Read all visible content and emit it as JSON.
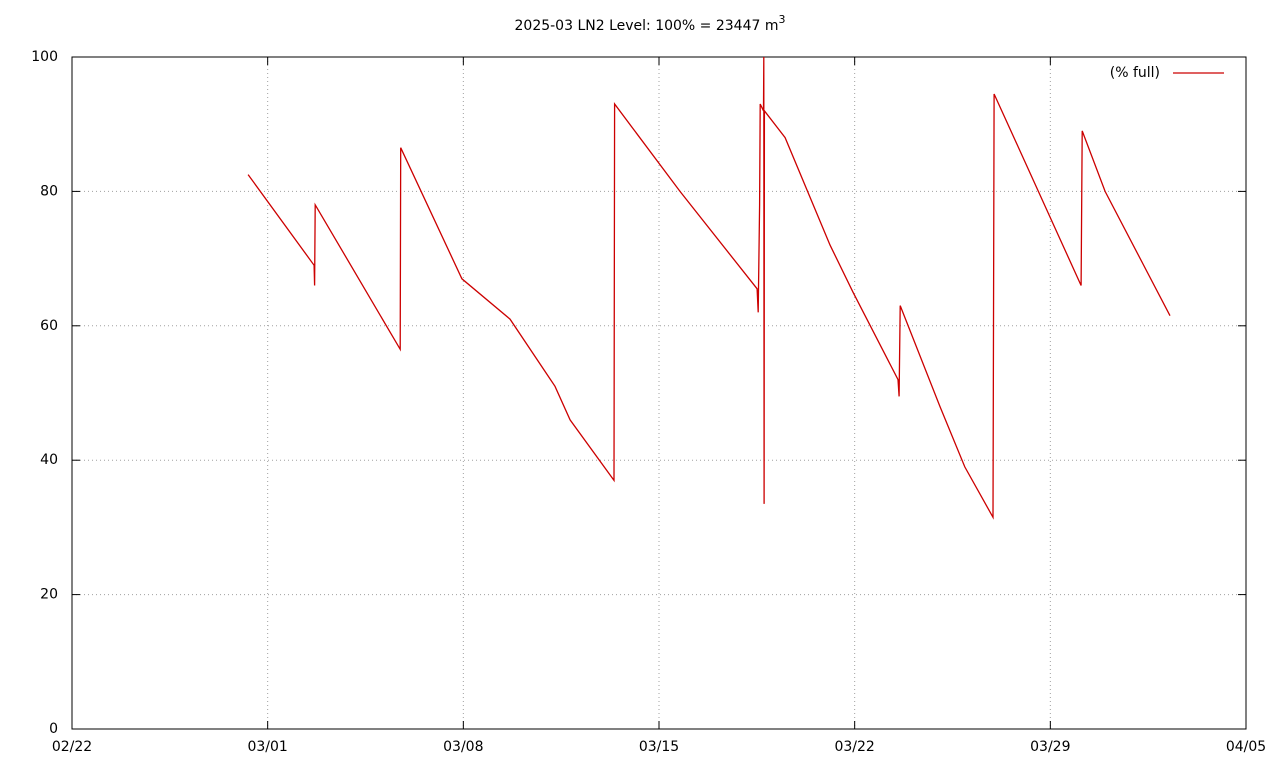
{
  "chart_data": {
    "type": "line",
    "title": "2025-03 LN2 Level: 100% = 23447 m",
    "title_superscript": "3",
    "x": [
      6.3,
      8.66,
      8.68,
      8.7,
      11.74,
      11.76,
      13.95,
      15.67,
      17.28,
      17.82,
      19.39,
      19.41,
      21.75,
      24.51,
      24.55,
      24.6,
      24.62,
      24.74,
      24.75,
      24.76,
      24.77,
      25.51,
      27.12,
      27.94,
      29.55,
      29.59,
      29.63,
      31.05,
      31.94,
      32.95,
      32.99,
      33.92,
      36.1,
      36.14,
      36.96,
      39.28
    ],
    "series": [
      {
        "name": "(% full)",
        "color": "#cc0000",
        "values": [
          82.5,
          69,
          66,
          78,
          56.5,
          86.5,
          67,
          61,
          51,
          46,
          37,
          93,
          80,
          65.5,
          62,
          78,
          93,
          92,
          100,
          33.5,
          92,
          88,
          72,
          65,
          52,
          49.5,
          63,
          48,
          39,
          31.5,
          94.5,
          86,
          66,
          89,
          80,
          61.5
        ]
      }
    ],
    "xlim": [
      0,
      42
    ],
    "xticks": [
      {
        "value": 0,
        "label": "02/22"
      },
      {
        "value": 7,
        "label": "03/01"
      },
      {
        "value": 14,
        "label": "03/08"
      },
      {
        "value": 21,
        "label": "03/15"
      },
      {
        "value": 28,
        "label": "03/22"
      },
      {
        "value": 35,
        "label": "03/29"
      },
      {
        "value": 42,
        "label": "04/05"
      }
    ],
    "ylim": [
      0,
      100
    ],
    "yticks": [
      0,
      20,
      40,
      60,
      80,
      100
    ],
    "grid": true,
    "legend": "top-right"
  }
}
